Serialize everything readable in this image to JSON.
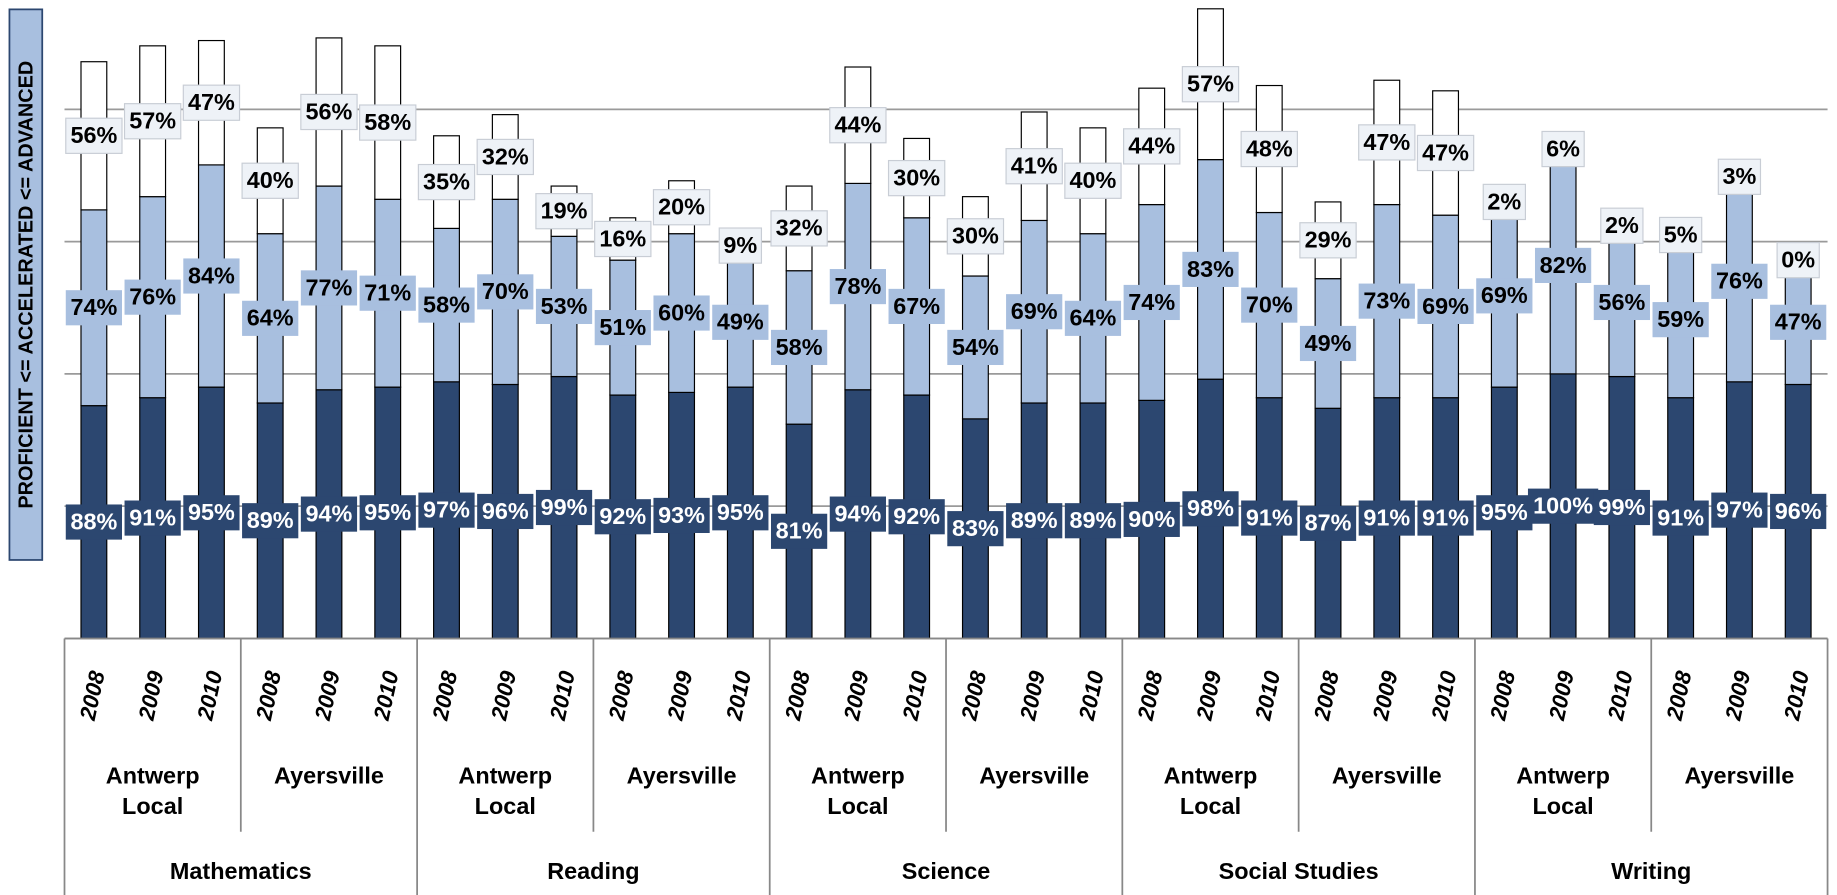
{
  "chart_data": {
    "type": "stacked_bar",
    "y_label": "PROFICIENT <= ACCELERATED <= ADVANCED",
    "categories": [
      "2008",
      "2009",
      "2010",
      "2008",
      "2009",
      "2010",
      "2008",
      "2009",
      "2010",
      "2008",
      "2009",
      "2010",
      "2008",
      "2009",
      "2010",
      "2008",
      "2009",
      "2010",
      "2008",
      "2009",
      "2010",
      "2008",
      "2009",
      "2010",
      "2008",
      "2009",
      "2010",
      "2008",
      "2009",
      "2010"
    ],
    "groups": [
      "Antwerp Local",
      "Ayersville",
      "Antwerp Local",
      "Ayersville",
      "Antwerp Local",
      "Ayersville",
      "Antwerp Local",
      "Ayersville",
      "Antwerp Local",
      "Ayersville"
    ],
    "supergroups": [
      "Mathematics",
      "Reading",
      "Science",
      "Social Studies",
      "Writing"
    ],
    "series": [
      {
        "color": "#2c4770",
        "label_color": "#ffffff",
        "values": [
          88,
          91,
          95,
          89,
          94,
          95,
          97,
          96,
          99,
          92,
          93,
          95,
          81,
          94,
          92,
          83,
          89,
          89,
          90,
          98,
          91,
          87,
          91,
          91,
          95,
          100,
          99,
          91,
          97,
          96
        ],
        "value_labels": [
          "88%",
          "91%",
          "95%",
          "89%",
          "94%",
          "95%",
          "97%",
          "96%",
          "99%",
          "92%",
          "93%",
          "95%",
          "81%",
          "94%",
          "92%",
          "83%",
          "89%",
          "89%",
          "90%",
          "98%",
          "91%",
          "87%",
          "91%",
          "91%",
          "95%",
          "100%",
          "99%",
          "91%",
          "97%",
          "96%"
        ]
      },
      {
        "color": "#a8bfdf",
        "label_color": "#000000",
        "values": [
          74,
          76,
          84,
          64,
          77,
          71,
          58,
          70,
          53,
          51,
          60,
          49,
          58,
          78,
          67,
          54,
          69,
          64,
          74,
          83,
          70,
          49,
          73,
          69,
          69,
          82,
          56,
          59,
          76,
          47
        ],
        "value_labels": [
          "74%",
          "76%",
          "84%",
          "64%",
          "77%",
          "71%",
          "58%",
          "70%",
          "53%",
          "51%",
          "60%",
          "49%",
          "58%",
          "78%",
          "67%",
          "54%",
          "69%",
          "64%",
          "74%",
          "83%",
          "70%",
          "49%",
          "73%",
          "69%",
          "69%",
          "82%",
          "56%",
          "59%",
          "76%",
          "47%"
        ]
      },
      {
        "color": "#ffffff",
        "label_color": "#000000",
        "values": [
          56,
          57,
          47,
          40,
          56,
          58,
          35,
          32,
          19,
          16,
          20,
          9,
          32,
          44,
          30,
          30,
          41,
          40,
          44,
          57,
          48,
          29,
          47,
          47,
          2,
          6,
          2,
          5,
          3,
          0
        ],
        "value_labels": [
          "56%",
          "57%",
          "47%",
          "40%",
          "56%",
          "58%",
          "35%",
          "32%",
          "19%",
          "16%",
          "20%",
          "9%",
          "32%",
          "44%",
          "30%",
          "30%",
          "41%",
          "40%",
          "44%",
          "57%",
          "48%",
          "29%",
          "47%",
          "47%",
          "2%",
          "6%",
          "2%",
          "5%",
          "3%",
          "0%"
        ]
      }
    ],
    "ylim": [
      0,
      240
    ],
    "yticks": [
      0,
      50,
      100,
      150,
      200
    ],
    "grid": true
  }
}
